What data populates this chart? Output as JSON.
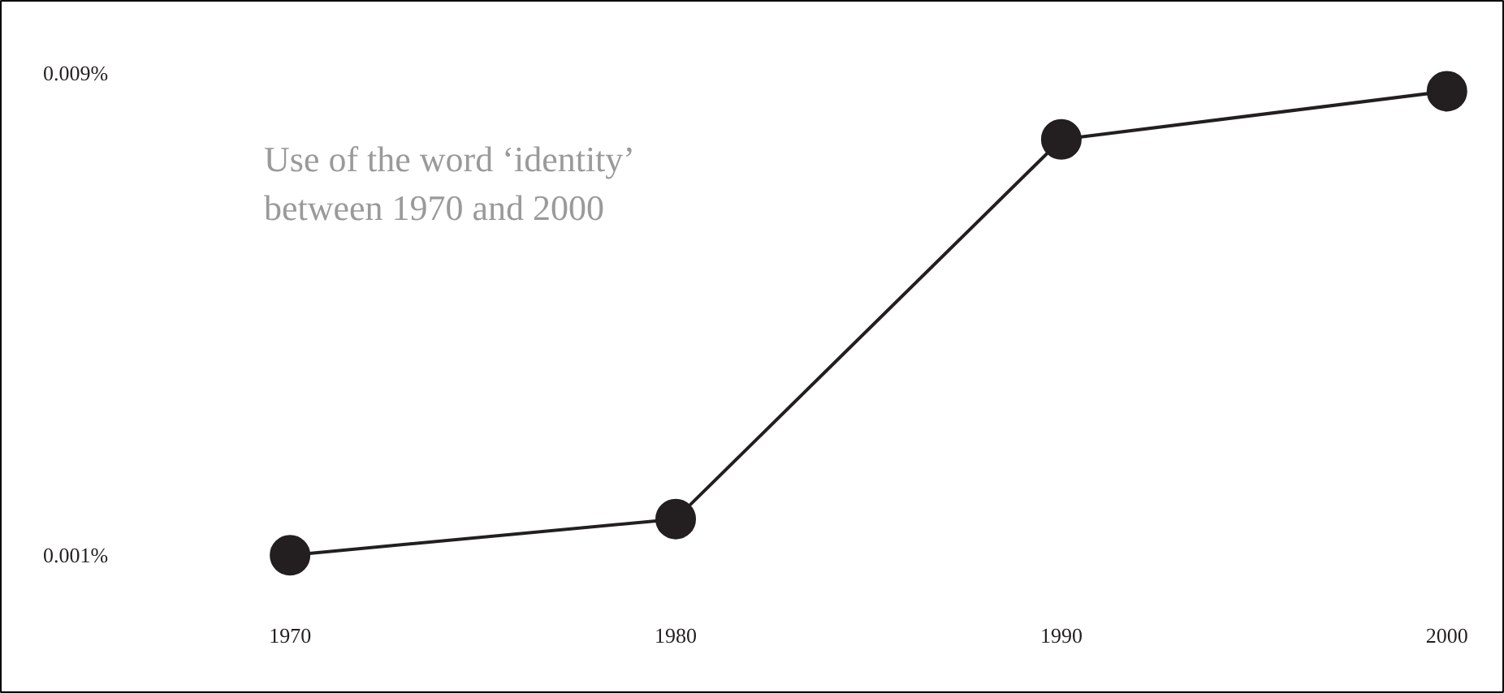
{
  "chart_data": {
    "type": "line",
    "title": "Use of the word ‘identity’ between 1970 and 2000",
    "x": [
      1970,
      1980,
      1990,
      2000
    ],
    "series": [
      {
        "color": "#231f20",
        "values": [
          0.001,
          0.0016,
          0.0079,
          0.0087
        ]
      }
    ],
    "xlim": [
      1962.5,
      2001.5
    ],
    "ylim": [
      -0.0013,
      0.0102
    ],
    "xticks": [
      1970,
      1980,
      1990,
      2000
    ],
    "yticks": [
      {
        "value": 0.001,
        "label": "0.001%"
      },
      {
        "value": 0.009,
        "label": "0.009%"
      }
    ],
    "grid": false,
    "marker": "circle",
    "line_style": "solid"
  }
}
